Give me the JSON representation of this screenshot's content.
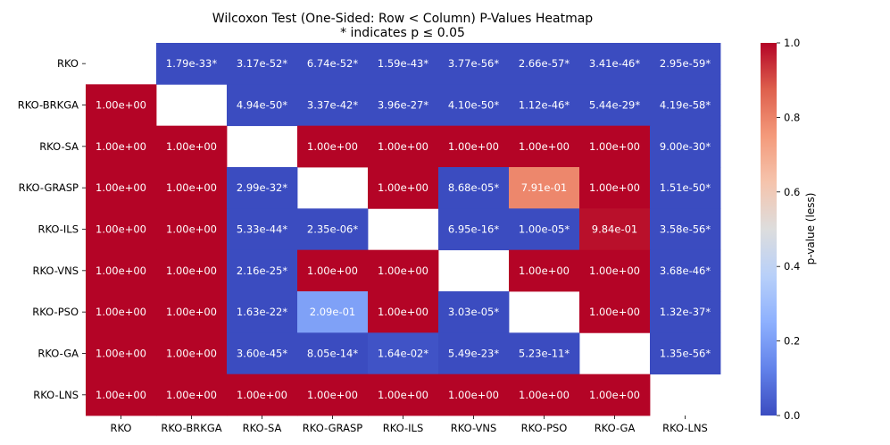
{
  "chart_data": {
    "type": "heatmap",
    "title": "Wilcoxon Test (One-Sided: Row < Column) P-Values Heatmap",
    "subtitle": "* indicates p ≤ 0.05",
    "rows": [
      "RKO",
      "RKO-BRKGA",
      "RKO-SA",
      "RKO-GRASP",
      "RKO-ILS",
      "RKO-VNS",
      "RKO-PSO",
      "RKO-GA",
      "RKO-LNS"
    ],
    "columns": [
      "RKO",
      "RKO-BRKGA",
      "RKO-SA",
      "RKO-GRASP",
      "RKO-ILS",
      "RKO-VNS",
      "RKO-PSO",
      "RKO-GA",
      "RKO-LNS"
    ],
    "values": [
      [
        null,
        1.79e-33,
        3.17e-52,
        6.74e-52,
        1.59e-43,
        3.77e-56,
        2.66e-57,
        3.41e-46,
        2.95e-59
      ],
      [
        1.0,
        null,
        4.94e-50,
        3.37e-42,
        3.96e-27,
        4.1e-50,
        1.12e-46,
        5.44e-29,
        4.19e-58
      ],
      [
        1.0,
        1.0,
        null,
        1.0,
        1.0,
        1.0,
        1.0,
        1.0,
        9e-30
      ],
      [
        1.0,
        1.0,
        2.99e-32,
        null,
        1.0,
        8.68e-05,
        0.791,
        1.0,
        1.51e-50
      ],
      [
        1.0,
        1.0,
        5.33e-44,
        2.35e-06,
        null,
        6.95e-16,
        1e-05,
        0.984,
        3.58e-56
      ],
      [
        1.0,
        1.0,
        2.16e-25,
        1.0,
        1.0,
        null,
        1.0,
        1.0,
        3.68e-46
      ],
      [
        1.0,
        1.0,
        1.63e-22,
        0.209,
        1.0,
        3.03e-05,
        null,
        1.0,
        1.32e-37
      ],
      [
        1.0,
        1.0,
        3.6e-45,
        8.05e-14,
        0.0164,
        5.49e-23,
        5.23e-11,
        null,
        1.35e-56
      ],
      [
        1.0,
        1.0,
        1.0,
        1.0,
        1.0,
        1.0,
        1.0,
        1.0,
        null
      ]
    ],
    "annotations": [
      [
        "",
        "1.79e-33*",
        "3.17e-52*",
        "6.74e-52*",
        "1.59e-43*",
        "3.77e-56*",
        "2.66e-57*",
        "3.41e-46*",
        "2.95e-59*"
      ],
      [
        "1.00e+00",
        "",
        "4.94e-50*",
        "3.37e-42*",
        "3.96e-27*",
        "4.10e-50*",
        "1.12e-46*",
        "5.44e-29*",
        "4.19e-58*"
      ],
      [
        "1.00e+00",
        "1.00e+00",
        "",
        "1.00e+00",
        "1.00e+00",
        "1.00e+00",
        "1.00e+00",
        "1.00e+00",
        "9.00e-30*"
      ],
      [
        "1.00e+00",
        "1.00e+00",
        "2.99e-32*",
        "",
        "1.00e+00",
        "8.68e-05*",
        "7.91e-01",
        "1.00e+00",
        "1.51e-50*"
      ],
      [
        "1.00e+00",
        "1.00e+00",
        "5.33e-44*",
        "2.35e-06*",
        "",
        "6.95e-16*",
        "1.00e-05*",
        "9.84e-01",
        "3.58e-56*"
      ],
      [
        "1.00e+00",
        "1.00e+00",
        "2.16e-25*",
        "1.00e+00",
        "1.00e+00",
        "",
        "1.00e+00",
        "1.00e+00",
        "3.68e-46*"
      ],
      [
        "1.00e+00",
        "1.00e+00",
        "1.63e-22*",
        "2.09e-01",
        "1.00e+00",
        "3.03e-05*",
        "",
        "1.00e+00",
        "1.32e-37*"
      ],
      [
        "1.00e+00",
        "1.00e+00",
        "3.60e-45*",
        "8.05e-14*",
        "1.64e-02*",
        "5.49e-23*",
        "5.23e-11*",
        "",
        "1.35e-56*"
      ],
      [
        "1.00e+00",
        "1.00e+00",
        "1.00e+00",
        "1.00e+00",
        "1.00e+00",
        "1.00e+00",
        "1.00e+00",
        "1.00e+00",
        ""
      ]
    ],
    "colorscale": "coolwarm",
    "vmin": 0.0,
    "vmax": 1.0,
    "colorbar": {
      "label": "p-value (less)",
      "ticks": [
        0.0,
        0.2,
        0.4,
        0.6,
        0.8,
        1.0
      ],
      "tick_labels": [
        "0.0",
        "0.2",
        "0.4",
        "0.6",
        "0.8",
        "1.0"
      ]
    },
    "grid": false,
    "legend": "colorbar-right"
  }
}
